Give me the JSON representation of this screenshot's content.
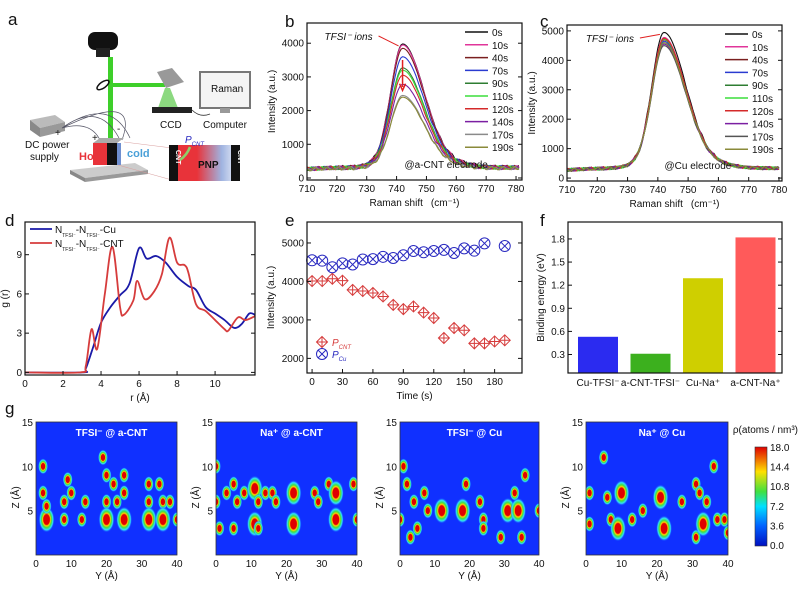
{
  "panel_labels": {
    "a": "a",
    "b": "b",
    "c": "c",
    "d": "d",
    "e": "e",
    "f": "f",
    "g": "g"
  },
  "schematic": {
    "raman": "Raman",
    "ccd": "CCD",
    "computer": "Computer",
    "dc_line1": "DC power",
    "dc_line2": "supply",
    "hot": "Hot",
    "cold": "cold",
    "pnp": "PNP",
    "cnt": "CNT",
    "p_symbol": "P",
    "p_sub": "CNT",
    "plus": "+",
    "minus": "-",
    "colors": {
      "laser": "#3ecf2a",
      "hot": "#e8333a",
      "cold": "#6f8fd0"
    }
  },
  "chart_data": [
    {
      "id": "b",
      "type": "line",
      "xlabel": "Raman shift",
      "xunit": "(cm⁻¹)",
      "ylabel": "Intensity (a.u.)",
      "xlim": [
        710,
        782
      ],
      "ylim": [
        -60,
        4600
      ],
      "x_ticks": [
        "710",
        "720",
        "730",
        "740",
        "750",
        "760",
        "770",
        "780"
      ],
      "y_ticks": [
        "0",
        "1000",
        "2000",
        "3000",
        "4000"
      ],
      "annotation": "TFSI⁻ ions",
      "note": "@a-CNT electrode",
      "peak_position": 742,
      "series": [
        {
          "name": "0s",
          "color": "#111111",
          "peak": 3980
        },
        {
          "name": "10s",
          "color": "#e0359a",
          "peak": 3950
        },
        {
          "name": "40s",
          "color": "#7a1f1f",
          "peak": 3850
        },
        {
          "name": "70s",
          "color": "#2a3bd0",
          "peak": 3600
        },
        {
          "name": "90s",
          "color": "#2e7d32",
          "peak": 3270
        },
        {
          "name": "110s",
          "color": "#3cde3c",
          "peak": 3200
        },
        {
          "name": "120s",
          "color": "#d42a2a",
          "peak": 3050
        },
        {
          "name": "140s",
          "color": "#7b1fa2",
          "peak": 2780
        },
        {
          "name": "170s",
          "color": "#8a8a8a",
          "peak": 2450
        },
        {
          "name": "190s",
          "color": "#8a8a3a",
          "peak": 2400
        }
      ]
    },
    {
      "id": "c",
      "type": "line",
      "xlabel": "Raman shift",
      "xunit": "(cm⁻¹)",
      "ylabel": "Intensity (a.u.)",
      "xlim": [
        710,
        781
      ],
      "ylim": [
        -100,
        5200
      ],
      "x_ticks": [
        "710",
        "720",
        "730",
        "740",
        "750",
        "760",
        "770",
        "780"
      ],
      "y_ticks": [
        "0",
        "1000",
        "2000",
        "3000",
        "4000",
        "5000"
      ],
      "annotation": "TFSI⁻ ions",
      "note": "@Cu electrode",
      "peak_position": 742,
      "series": [
        {
          "name": "0s",
          "color": "#111111",
          "peak": 4950
        },
        {
          "name": "10s",
          "color": "#e0359a",
          "peak": 4780
        },
        {
          "name": "40s",
          "color": "#7a1f1f",
          "peak": 4700
        },
        {
          "name": "70s",
          "color": "#2a3bd0",
          "peak": 4650
        },
        {
          "name": "90s",
          "color": "#2e7d32",
          "peak": 4600
        },
        {
          "name": "110s",
          "color": "#3cde3c",
          "peak": 4720
        },
        {
          "name": "120s",
          "color": "#d42a2a",
          "peak": 4750
        },
        {
          "name": "140s",
          "color": "#7b1fa2",
          "peak": 4550
        },
        {
          "name": "170s",
          "color": "#555555",
          "peak": 4500
        },
        {
          "name": "190s",
          "color": "#8a8a3a",
          "peak": 4600
        }
      ]
    },
    {
      "id": "d",
      "type": "line",
      "xlabel": "r  (Å)",
      "ylabel": "g (r)",
      "xlim": [
        0,
        12.1
      ],
      "ylim": [
        -0.2,
        11.5
      ],
      "x_ticks": [
        "0",
        "2",
        "4",
        "6",
        "8",
        "10"
      ],
      "y_ticks": [
        "0",
        "3",
        "6",
        "9"
      ],
      "series": [
        {
          "name": "N TFSI⁻ -N TFSI⁻ -Cu",
          "label_parts": [
            "N",
            "TFSI⁻",
            "-N",
            "TFSI⁻",
            "-Cu"
          ],
          "color": "#1a1aa8",
          "points": [
            [
              0,
              0
            ],
            [
              3,
              0
            ],
            [
              3.2,
              0.3
            ],
            [
              3.6,
              2
            ],
            [
              4,
              3.8
            ],
            [
              4.5,
              5
            ],
            [
              5,
              5.9
            ],
            [
              5.5,
              6.8
            ],
            [
              6,
              9.5
            ],
            [
              6.4,
              8.7
            ],
            [
              6.9,
              8.9
            ],
            [
              7.4,
              8.4
            ],
            [
              8,
              7.3
            ],
            [
              8.6,
              6.6
            ],
            [
              9,
              6.3
            ],
            [
              9.5,
              5
            ],
            [
              10,
              4.5
            ],
            [
              10.5,
              4
            ],
            [
              11,
              3.4
            ],
            [
              11.4,
              3.7
            ],
            [
              11.8,
              4.5
            ],
            [
              12.1,
              4.4
            ]
          ]
        },
        {
          "name": "N TFSI⁻ -N TFSI⁻ -CNT",
          "label_parts": [
            "N",
            "TFSI⁻",
            "-N",
            "TFSI⁻",
            "-CNT"
          ],
          "color": "#d63c3c",
          "points": [
            [
              0,
              0
            ],
            [
              2.9,
              0
            ],
            [
              3.2,
              0.5
            ],
            [
              3.5,
              3.3
            ],
            [
              3.8,
              1.8
            ],
            [
              4.2,
              6
            ],
            [
              4.6,
              9.6
            ],
            [
              5,
              5
            ],
            [
              5.2,
              4.4
            ],
            [
              5.7,
              5.5
            ],
            [
              5.9,
              7
            ],
            [
              6.3,
              5.6
            ],
            [
              6.8,
              6.2
            ],
            [
              7.2,
              7.5
            ],
            [
              7.6,
              10.3
            ],
            [
              8,
              8.4
            ],
            [
              8.4,
              8.2
            ],
            [
              8.6,
              7.6
            ],
            [
              9,
              5.2
            ],
            [
              9.5,
              4.7
            ],
            [
              10,
              4
            ],
            [
              10.5,
              3.3
            ],
            [
              10.7,
              3.2
            ],
            [
              11.2,
              4.2
            ],
            [
              11.6,
              4
            ],
            [
              12.1,
              4.3
            ]
          ]
        }
      ]
    },
    {
      "id": "e",
      "type": "scatter",
      "xlabel": "Time (s)",
      "ylabel": "Intensity (a.u.)",
      "xlim": [
        -5,
        207
      ],
      "ylim": [
        1620,
        5545
      ],
      "x_ticks": [
        "0",
        "30",
        "60",
        "90",
        "120",
        "150",
        "180"
      ],
      "y_ticks": [
        "2000",
        "3000",
        "4000",
        "5000"
      ],
      "series": [
        {
          "name": "P CNT",
          "symbol": "P",
          "sub": "CNT",
          "color": "#d63c3c",
          "marker": "diamond-cross",
          "x": [
            0,
            10,
            20,
            30,
            40,
            50,
            60,
            70,
            80,
            90,
            100,
            110,
            120,
            130,
            140,
            150,
            160,
            170,
            180,
            190
          ],
          "y": [
            4010,
            4010,
            4070,
            4020,
            3780,
            3750,
            3700,
            3610,
            3390,
            3280,
            3350,
            3190,
            3050,
            2530,
            2790,
            2730,
            2390,
            2390,
            2440,
            2470
          ]
        },
        {
          "name": "P Cu",
          "symbol": "P",
          "sub": "Cu",
          "color": "#2a2ac0",
          "marker": "circle-x",
          "x": [
            0,
            10,
            20,
            30,
            40,
            50,
            60,
            70,
            80,
            90,
            100,
            110,
            120,
            130,
            140,
            150,
            160,
            170,
            190
          ],
          "y": [
            4550,
            4540,
            4370,
            4470,
            4440,
            4570,
            4580,
            4640,
            4610,
            4680,
            4790,
            4760,
            4790,
            4820,
            4740,
            4860,
            4800,
            4990,
            4920
          ]
        }
      ]
    },
    {
      "id": "f",
      "type": "bar",
      "ylabel": "Binding energy (eV)",
      "ylim": [
        0.06,
        2.02
      ],
      "y_ticks": [
        "0.3",
        "0.6",
        "0.9",
        "1.2",
        "1.5",
        "1.8"
      ],
      "categories": [
        "Cu-TFSI⁻",
        "a-CNT-TFSI⁻",
        "Cu-Na⁺",
        "a-CNT-Na⁺"
      ],
      "values": [
        0.53,
        0.31,
        1.29,
        1.82
      ],
      "colors": [
        "#2b2bf0",
        "#3cb01e",
        "#cfcf00",
        "#ff5a5a"
      ]
    },
    {
      "id": "g",
      "type": "heatmap",
      "xlabel": "Y (Å)",
      "ylabel": "Z (Å)",
      "xlim": [
        0,
        40
      ],
      "ylim": [
        0,
        15
      ],
      "x_ticks": [
        "0",
        "10",
        "20",
        "30",
        "40"
      ],
      "y_ticks": [
        "5",
        "10",
        "15"
      ],
      "colorbar": {
        "title": "ρ(atoms / nm³)",
        "ticks": [
          "18.0",
          "14.4",
          "10.8",
          "7.2",
          "3.6",
          "0.0"
        ],
        "range": [
          0,
          18
        ]
      },
      "maps": [
        {
          "title": "TFSI⁻ @ a-CNT",
          "hotspots": [
            [
              2,
              10,
              1
            ],
            [
              2,
              7,
              1
            ],
            [
              3,
              4,
              2
            ],
            [
              3,
              5.5,
              1
            ],
            [
              8,
              4,
              1
            ],
            [
              8,
              6,
              1
            ],
            [
              9,
              8.5,
              1
            ],
            [
              10,
              7,
              1
            ],
            [
              13,
              4,
              1
            ],
            [
              14,
              6,
              1
            ],
            [
              19,
              11,
              1
            ],
            [
              20,
              9,
              1
            ],
            [
              20,
              6,
              1
            ],
            [
              20,
              4,
              2
            ],
            [
              22,
              8,
              1
            ],
            [
              23,
              6,
              1
            ],
            [
              25,
              9,
              1
            ],
            [
              25,
              7,
              1
            ],
            [
              25,
              4,
              2
            ],
            [
              32,
              8,
              1
            ],
            [
              32,
              6,
              1
            ],
            [
              32,
              4,
              2
            ],
            [
              35,
              8,
              1
            ],
            [
              36,
              6,
              1
            ],
            [
              36,
              4,
              2
            ],
            [
              38,
              6,
              1
            ],
            [
              40,
              4,
              1
            ]
          ]
        },
        {
          "title": "Na⁺ @ a-CNT",
          "hotspots": [
            [
              0,
              10,
              1
            ],
            [
              0,
              6,
              1
            ],
            [
              1,
              3,
              1
            ],
            [
              3,
              7,
              1
            ],
            [
              5,
              8,
              1
            ],
            [
              5,
              3,
              1
            ],
            [
              6,
              6,
              1
            ],
            [
              8,
              7,
              1
            ],
            [
              11,
              7.5,
              2
            ],
            [
              11,
              3.5,
              2
            ],
            [
              12,
              6,
              1
            ],
            [
              12,
              3,
              1
            ],
            [
              14,
              7,
              1
            ],
            [
              16,
              7,
              1
            ],
            [
              17,
              6,
              1
            ],
            [
              22,
              7,
              2
            ],
            [
              22,
              3.5,
              2
            ],
            [
              28,
              7,
              1
            ],
            [
              29,
              6,
              1
            ],
            [
              32,
              8,
              1
            ],
            [
              34,
              7,
              2
            ],
            [
              34,
              4,
              2
            ],
            [
              39,
              8,
              1
            ],
            [
              40,
              4,
              1
            ]
          ]
        },
        {
          "title": "TFSI⁻ @ Cu",
          "hotspots": [
            [
              0,
              4,
              1
            ],
            [
              1,
              10,
              1
            ],
            [
              2,
              8,
              1
            ],
            [
              3,
              2,
              1
            ],
            [
              4,
              6,
              1
            ],
            [
              5,
              3,
              1
            ],
            [
              7,
              7,
              1
            ],
            [
              8,
              5,
              1
            ],
            [
              12,
              5,
              2
            ],
            [
              18,
              5,
              2
            ],
            [
              19,
              8,
              1
            ],
            [
              23,
              6,
              1
            ],
            [
              24,
              4,
              1
            ],
            [
              24,
              3,
              1
            ],
            [
              29,
              2,
              1
            ],
            [
              31,
              5,
              2
            ],
            [
              33,
              7,
              1
            ],
            [
              34,
              5,
              2
            ],
            [
              35,
              2,
              1
            ],
            [
              36,
              9,
              1
            ],
            [
              40,
              5,
              1
            ]
          ]
        },
        {
          "title": "Na⁺ @ Cu",
          "hotspots": [
            [
              1,
              7,
              1
            ],
            [
              1,
              3.5,
              1
            ],
            [
              5,
              11,
              1
            ],
            [
              6,
              6.5,
              1
            ],
            [
              7,
              4,
              1
            ],
            [
              10,
              7,
              2
            ],
            [
              9,
              3,
              2
            ],
            [
              13,
              4,
              1
            ],
            [
              16,
              5,
              1
            ],
            [
              21,
              6.5,
              2
            ],
            [
              22,
              3,
              2
            ],
            [
              27,
              6,
              1
            ],
            [
              31,
              8,
              1
            ],
            [
              32,
              7,
              1
            ],
            [
              31,
              2,
              1
            ],
            [
              33,
              3.5,
              2
            ],
            [
              34,
              6,
              1
            ],
            [
              36,
              10,
              1
            ],
            [
              37,
              4,
              1
            ],
            [
              39,
              4,
              1
            ],
            [
              40,
              2.5,
              1
            ]
          ]
        }
      ]
    }
  ]
}
